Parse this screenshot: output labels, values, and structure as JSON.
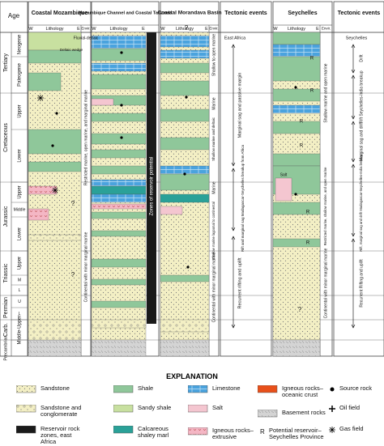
{
  "header": {
    "age": "Age",
    "columns": [
      "Coastal Mozambique",
      "Mozambique Channel and Coastal Tanzania",
      "Coastal Morandava Basin",
      "Tectonic events",
      "Seychelles",
      "Tectonic events"
    ],
    "w": "W",
    "lithology": "Lithology",
    "e": "E",
    "envir": "Envir."
  },
  "ages": {
    "eras": [
      "Tertiary",
      "Cretaceous",
      "Jurassic",
      "Triassic",
      "Permian",
      "Carb.",
      "Precambrian"
    ],
    "subdivisions": [
      "Neogene",
      "Paleogene",
      "Upper",
      "Lower",
      "Upper",
      "Middle",
      "Lower",
      "Upper",
      "M",
      "L",
      "U",
      "L",
      "Middle-Upper"
    ]
  },
  "environments": [
    "Fluvial-deltaic",
    "Restricted marine, open marine, and marginal marine",
    "Continental with minor marginal marine",
    "Shallow to open marine",
    "Marine",
    "Shallow marine and deltaic",
    "Marine",
    "Shallow marine lagoonal to continental",
    "Continental with minor marginal marine",
    "Shallow marine and open marine",
    "Restricted marine, shallow marine, and open marine",
    "Continental with minor marginal marine"
  ],
  "reservoir_zone": "Zones of reservoir potential",
  "tectonics": {
    "east_africa": [
      "East Africa",
      "Marginal sag and passive margin",
      "Rift and marginal sag Madagascar-Seychelles breakup from Africa",
      "Recurrent rifting and uplift"
    ],
    "seychelles": [
      "Seychelles",
      "Drift",
      "Rift Seychelles-India breakup",
      "Marginal sag and drift",
      "Rift, marginal sag and drift Madagascar-Seychelles-India breakup",
      "Recurrent Rifting and uplift"
    ]
  },
  "annotations": {
    "deltaic_wedge": "Deltaic wedge",
    "question": "?",
    "r": "R",
    "salt": "Salt"
  },
  "explanation": {
    "title": "EXPLANATION",
    "items": [
      "Sandstone",
      "Shale",
      "Limestone",
      "Igneous rocks–oceanic crust",
      "Source rock",
      "Sandstone and conglomerate",
      "Sandy shale",
      "Salt",
      "Oil field",
      "Reservoir rock zones, east Africa",
      "Calcareous shaley marl",
      "Igneous rocks–extrusive",
      "Basement rocks",
      "Potential reservoir–Seychelles Province",
      "Gas field"
    ],
    "r_symbol": "R"
  }
}
